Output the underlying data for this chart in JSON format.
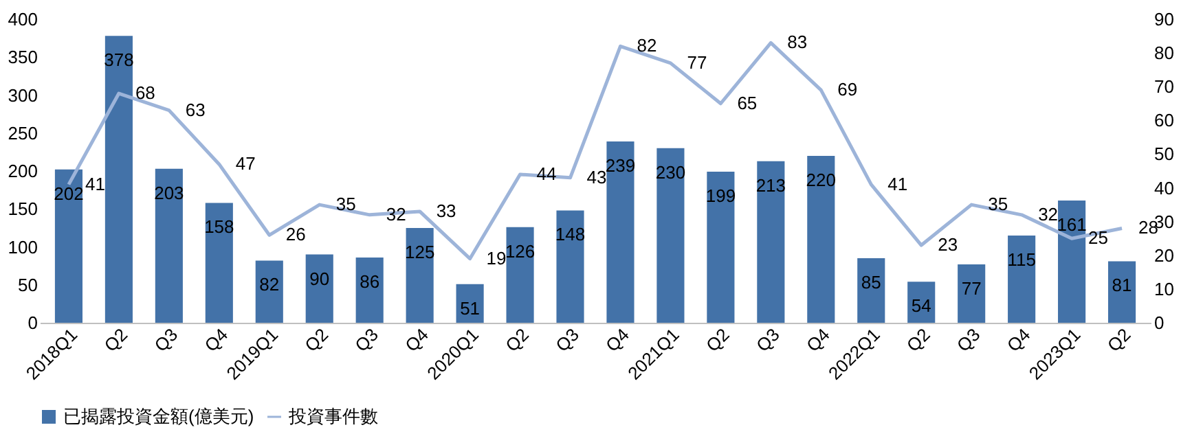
{
  "chart_data": {
    "type": "bar",
    "categories": [
      "2018Q1",
      "Q2",
      "Q3",
      "Q4",
      "2019Q1",
      "Q2",
      "Q3",
      "Q4",
      "2020Q1",
      "Q2",
      "Q3",
      "Q4",
      "2021Q1",
      "Q2",
      "Q3",
      "Q4",
      "2022Q1",
      "Q2",
      "Q3",
      "Q4",
      "2023Q1",
      "Q2"
    ],
    "series": [
      {
        "name": "已揭露投資金額(億美元)",
        "color": "#4372a8",
        "values": [
          202,
          378,
          203,
          158,
          82,
          90,
          86,
          125,
          51,
          126,
          148,
          239,
          230,
          199,
          213,
          220,
          85,
          54,
          77,
          115,
          161,
          81
        ]
      },
      {
        "name": "投資事件數",
        "type": "line",
        "axis": "y2",
        "color": "#9db4d9",
        "values": [
          41,
          68,
          63,
          47,
          26,
          35,
          32,
          33,
          19,
          44,
          43,
          82,
          77,
          65,
          83,
          69,
          41,
          23,
          35,
          32,
          25,
          28
        ]
      }
    ],
    "ylim": [
      0,
      400
    ],
    "yticks": [
      0,
      50,
      100,
      150,
      200,
      250,
      300,
      350,
      400
    ],
    "y2lim": [
      0,
      90
    ],
    "y2ticks": [
      0,
      10,
      20,
      30,
      40,
      50,
      60,
      70,
      80,
      90
    ],
    "data_labels": true,
    "legend": "bottom",
    "grid": false,
    "marker": "none",
    "line_style": "solid"
  }
}
